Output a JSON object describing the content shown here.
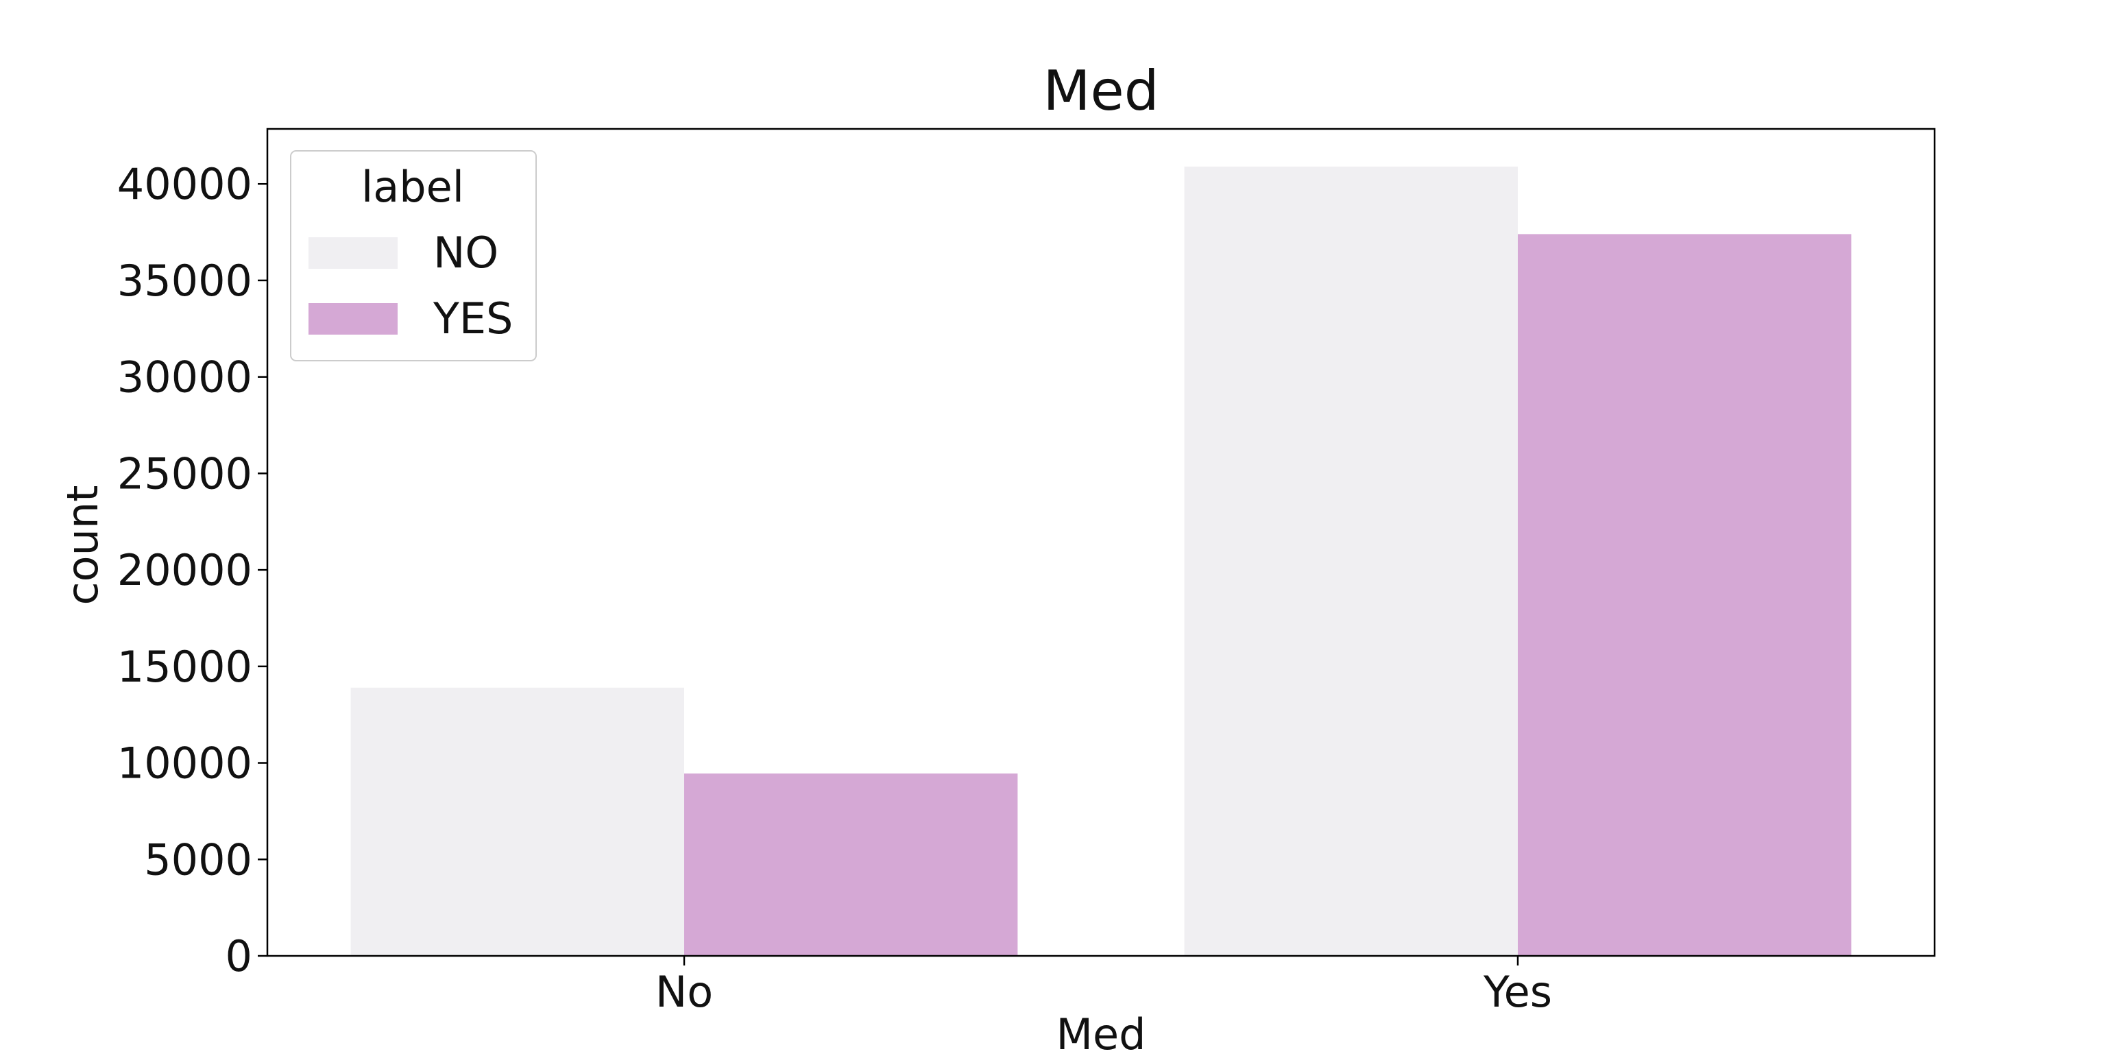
{
  "chart_data": {
    "type": "bar",
    "title": "Med",
    "xlabel": "Med",
    "ylabel": "count",
    "categories": [
      "No",
      "Yes"
    ],
    "series": [
      {
        "name": "NO",
        "color": "#f0eff2",
        "values": [
          13900,
          40900
        ]
      },
      {
        "name": "YES",
        "color": "#d5a8d5",
        "values": [
          9450,
          37400
        ]
      }
    ],
    "ylim": [
      0,
      42850
    ],
    "yticks": [
      0,
      5000,
      10000,
      15000,
      20000,
      25000,
      30000,
      35000,
      40000
    ],
    "legend": {
      "title": "label",
      "placement": "top-left"
    },
    "grid": false
  }
}
